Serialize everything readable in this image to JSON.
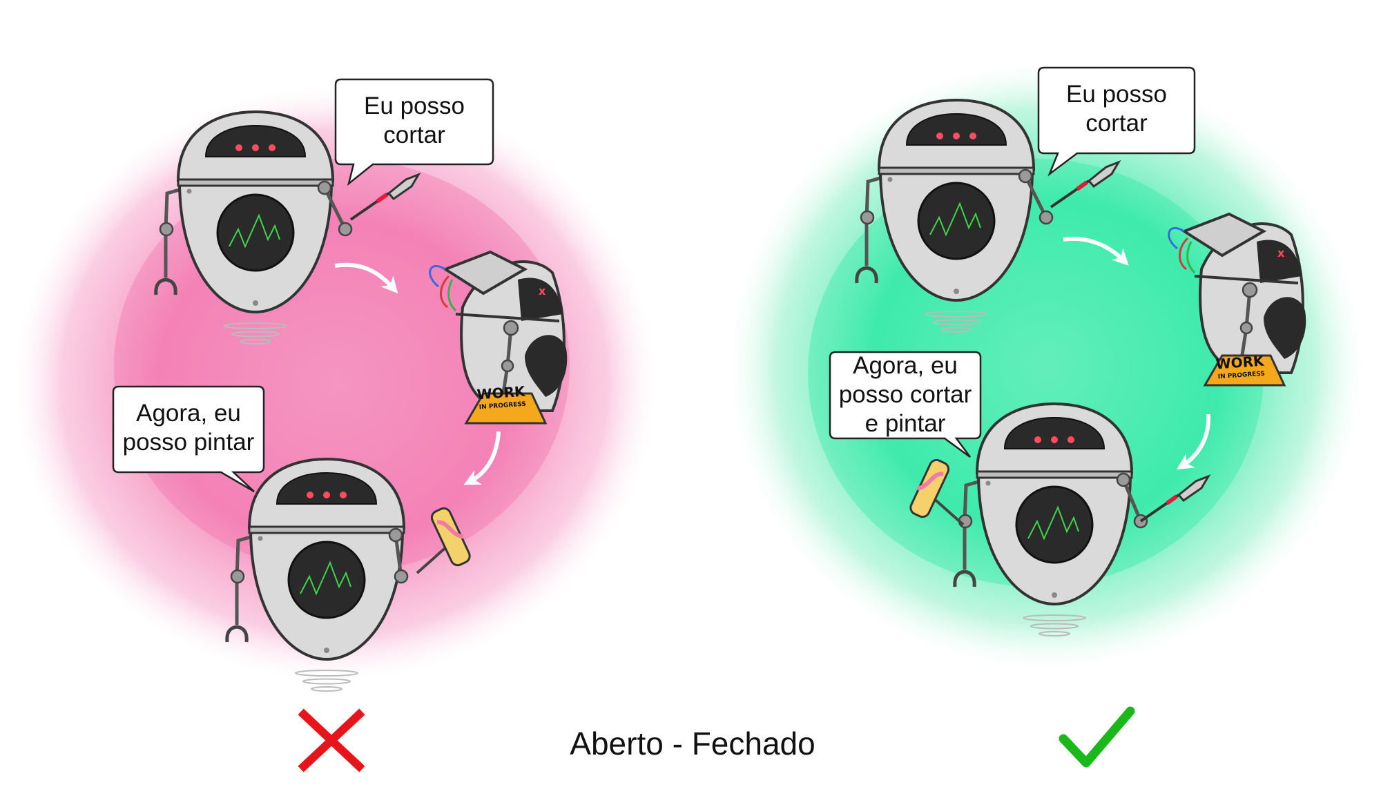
{
  "title": "Aberto - Fechado",
  "colors": {
    "left_bg": "#f26aa8",
    "right_bg": "#22e7a0",
    "cross": "#e8141b",
    "check": "#1bb81b"
  },
  "icons": {
    "bad": "cross-icon",
    "good": "check-icon"
  },
  "left_panel": {
    "bubble_top": [
      "Eu posso",
      "cortar"
    ],
    "bubble_bottom": [
      "Agora, eu",
      "posso pintar"
    ],
    "sign": {
      "big": "WORK",
      "small": "IN PROGRESS"
    }
  },
  "right_panel": {
    "bubble_top": [
      "Eu posso",
      "cortar"
    ],
    "bubble_bottom": [
      "Agora, eu",
      "posso cortar",
      "e pintar"
    ],
    "sign": {
      "big": "WORK",
      "small": "IN PROGRESS"
    }
  }
}
